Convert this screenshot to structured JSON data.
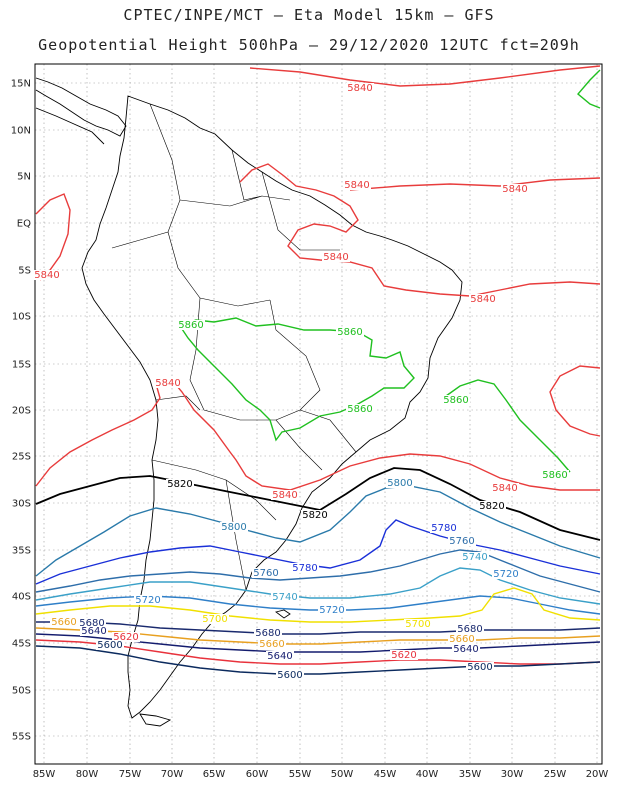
{
  "title_line1": "CPTEC/INPE/MCT  –  Eta Model 15km  –  GFS",
  "title_line2": "Geopotential Height 500hPa  –  29/12/2020 12UTC fct=209h",
  "lat_labels": [
    "15N",
    "10N",
    "5N",
    "EQ",
    "5S",
    "10S",
    "15S",
    "20S",
    "25S",
    "30S",
    "35S",
    "40S",
    "45S",
    "50S",
    "55S"
  ],
  "lon_labels": [
    "85W",
    "80W",
    "75W",
    "70W",
    "65W",
    "60W",
    "55W",
    "50W",
    "45W",
    "40W",
    "35W",
    "30W",
    "25W",
    "20W"
  ],
  "colors": {
    "c5600": "#0b2a5e",
    "c5620": "#e8323c",
    "c5640": "#141c6e",
    "c5660": "#e8a020",
    "c5680": "#1a2a6e",
    "c5700": "#f0e000",
    "c5720": "#2f7fc8",
    "c5740": "#3aa0c8",
    "c5760": "#2e6eaa",
    "c5780": "#1a30d8",
    "c5800": "#2a7aaa",
    "c5820": "#000000",
    "c5840": "#e83c3c",
    "c5860": "#20c020",
    "coast": "#000000"
  },
  "contour_labels": [
    {
      "text": "5840",
      "c": "c5840"
    },
    {
      "text": "5840",
      "c": "c5840"
    },
    {
      "text": "5840",
      "c": "c5840"
    },
    {
      "text": "5840",
      "c": "c5840"
    },
    {
      "text": "5840",
      "c": "c5840"
    },
    {
      "text": "5840",
      "c": "c5840"
    },
    {
      "text": "5840",
      "c": "c5840"
    },
    {
      "text": "5840",
      "c": "c5840"
    },
    {
      "text": "5840",
      "c": "c5840"
    },
    {
      "text": "5860",
      "c": "c5860"
    },
    {
      "text": "5860",
      "c": "c5860"
    },
    {
      "text": "5860",
      "c": "c5860"
    },
    {
      "text": "5860",
      "c": "c5860"
    },
    {
      "text": "5860",
      "c": "c5860"
    },
    {
      "text": "5820",
      "c": "c5820"
    },
    {
      "text": "5820",
      "c": "c5820"
    },
    {
      "text": "5820",
      "c": "c5820"
    },
    {
      "text": "5800",
      "c": "c5800"
    },
    {
      "text": "5800",
      "c": "c5800"
    },
    {
      "text": "5780",
      "c": "c5780"
    },
    {
      "text": "5780",
      "c": "c5780"
    },
    {
      "text": "5760",
      "c": "c5760"
    },
    {
      "text": "5760",
      "c": "c5760"
    },
    {
      "text": "5740",
      "c": "c5740"
    },
    {
      "text": "5740",
      "c": "c5740"
    },
    {
      "text": "5720",
      "c": "c5720"
    },
    {
      "text": "5720",
      "c": "c5720"
    },
    {
      "text": "5720",
      "c": "c5720"
    },
    {
      "text": "5700",
      "c": "c5700"
    },
    {
      "text": "5700",
      "c": "c5700"
    },
    {
      "text": "5680",
      "c": "c5680"
    },
    {
      "text": "5680",
      "c": "c5680"
    },
    {
      "text": "5680",
      "c": "c5680"
    },
    {
      "text": "5660",
      "c": "c5660"
    },
    {
      "text": "5660",
      "c": "c5660"
    },
    {
      "text": "5660",
      "c": "c5660"
    },
    {
      "text": "5640",
      "c": "c5640"
    },
    {
      "text": "5640",
      "c": "c5640"
    },
    {
      "text": "5640",
      "c": "c5640"
    },
    {
      "text": "5620",
      "c": "c5620"
    },
    {
      "text": "5620",
      "c": "c5620"
    },
    {
      "text": "5600",
      "c": "c5600"
    },
    {
      "text": "5600",
      "c": "c5600"
    },
    {
      "text": "5600",
      "c": "c5600"
    }
  ]
}
